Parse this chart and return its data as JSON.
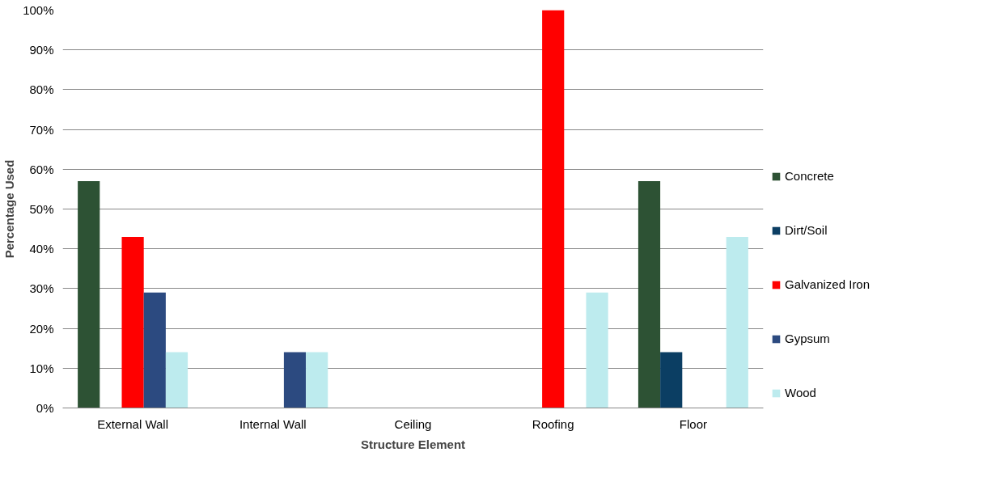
{
  "chart_data": {
    "type": "bar",
    "xlabel": "Structure Element",
    "ylabel": "Percentage Used",
    "categories": [
      "External Wall",
      "Internal Wall",
      "Ceiling",
      "Roofing",
      "Floor"
    ],
    "series": [
      {
        "name": "Concrete",
        "color": "#2d5234",
        "values": [
          57,
          0,
          0,
          0,
          57
        ]
      },
      {
        "name": "Dirt/Soil",
        "color": "#0b3e63",
        "values": [
          0,
          0,
          0,
          0,
          14
        ]
      },
      {
        "name": "Galvanized Iron",
        "color": "#ff0000",
        "values": [
          43,
          0,
          0,
          100,
          0
        ]
      },
      {
        "name": "Gypsum",
        "color": "#2c4a80",
        "values": [
          29,
          14,
          0,
          0,
          0
        ]
      },
      {
        "name": "Wood",
        "color": "#bdebee",
        "values": [
          14,
          14,
          0,
          29,
          43
        ]
      }
    ],
    "ylim": [
      0,
      100
    ],
    "yticks": [
      {
        "value": 0,
        "label": "0%"
      },
      {
        "value": 10,
        "label": "10%"
      },
      {
        "value": 20,
        "label": "20%"
      },
      {
        "value": 30,
        "label": "30%"
      },
      {
        "value": 40,
        "label": "40%"
      },
      {
        "value": 50,
        "label": "50%"
      },
      {
        "value": 60,
        "label": "60%"
      },
      {
        "value": 70,
        "label": "70%"
      },
      {
        "value": 80,
        "label": "80%"
      },
      {
        "value": 90,
        "label": "90%"
      },
      {
        "value": 100,
        "label": "100%"
      }
    ],
    "grid": "y",
    "legend": "right"
  }
}
